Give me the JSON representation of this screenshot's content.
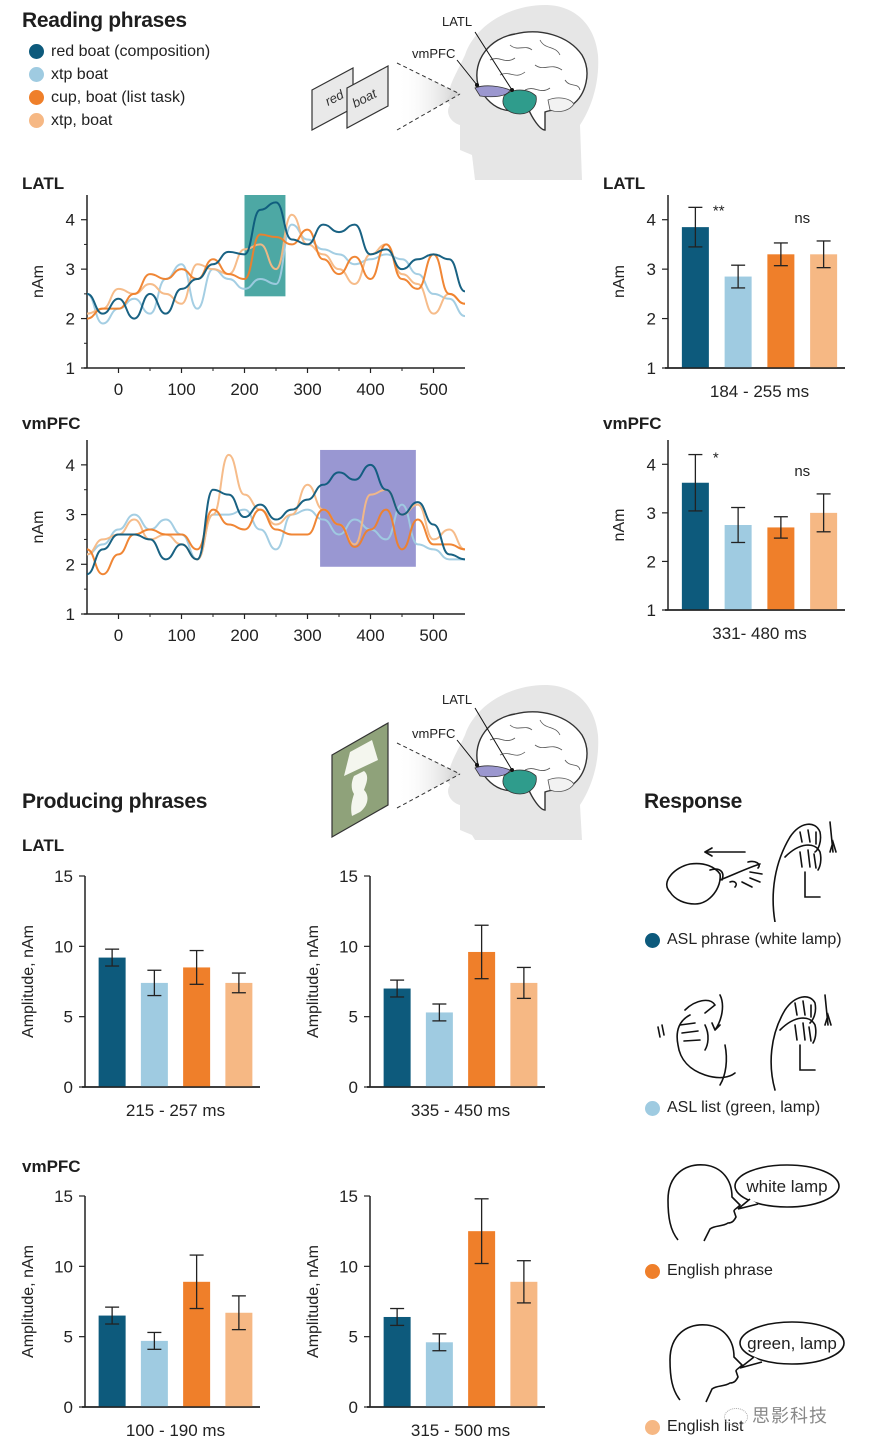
{
  "reading": {
    "title": "Reading phrases",
    "legend": [
      {
        "label": "red boat (composition)",
        "color": "#0d5a7c"
      },
      {
        "label": "xtp boat",
        "color": "#9fcbe1"
      },
      {
        "label": "cup, boat (list task)",
        "color": "#ef7f2a"
      },
      {
        "label": "xtp, boat",
        "color": "#f6b884"
      }
    ],
    "illustration": {
      "card_words": [
        "red",
        "boat"
      ],
      "labels": {
        "latl": "LATL",
        "vmpfc": "vmPFC"
      }
    }
  },
  "producing": {
    "title": "Producing phrases",
    "illustration": {
      "picture": "lamp",
      "labels": {
        "latl": "LATL",
        "vmpfc": "vmPFC"
      }
    }
  },
  "response": {
    "title": "Response",
    "items": [
      {
        "label": "ASL phrase (white lamp)",
        "color": "#0d5a7c",
        "kind": "asl"
      },
      {
        "label": "ASL list (green, lamp)",
        "color": "#9fcbe1",
        "kind": "asl"
      },
      {
        "label": "English phrase",
        "color": "#ef7f2a",
        "kind": "speech",
        "bubble": "white lamp"
      },
      {
        "label": "English list",
        "color": "#f6b884",
        "kind": "speech",
        "bubble": "green, lamp"
      }
    ]
  },
  "watermark": "思影科技",
  "chart_data": [
    {
      "id": "reading-latl-timecourse",
      "type": "line",
      "title": "LATL",
      "xlabel": "",
      "ylabel": "nAm",
      "xlim": [
        -50,
        550
      ],
      "ylim": [
        1,
        4.5
      ],
      "xticks": [
        0,
        100,
        200,
        300,
        400,
        500
      ],
      "yticks": [
        1,
        2,
        3,
        4
      ],
      "highlight": {
        "x0": 200,
        "x1": 265,
        "y0": 2.45,
        "y1": 4.5,
        "color": "#3a9e9a"
      },
      "x": [
        -50,
        -25,
        0,
        25,
        50,
        75,
        100,
        125,
        150,
        175,
        200,
        225,
        250,
        275,
        300,
        325,
        350,
        375,
        400,
        425,
        450,
        475,
        500,
        525,
        550
      ],
      "series": [
        {
          "name": "red boat (composition)",
          "color": "#0d5a7c",
          "values": [
            2.5,
            2.1,
            2.4,
            2.0,
            2.5,
            2.1,
            2.6,
            2.8,
            3.1,
            3.35,
            3.3,
            4.2,
            4.35,
            3.6,
            3.5,
            3.9,
            3.75,
            3.9,
            3.3,
            3.4,
            3.0,
            3.2,
            3.3,
            3.2,
            2.55
          ]
        },
        {
          "name": "xtp boat",
          "color": "#9fcbe1",
          "values": [
            2.5,
            1.9,
            2.2,
            2.4,
            2.1,
            2.8,
            3.1,
            2.2,
            3.0,
            2.8,
            2.6,
            2.8,
            2.7,
            3.9,
            3.6,
            3.4,
            3.3,
            3.1,
            3.2,
            3.3,
            3.2,
            2.9,
            2.5,
            2.4,
            2.05
          ]
        },
        {
          "name": "cup, boat (list task)",
          "color": "#ef7f2a",
          "values": [
            2.0,
            2.2,
            2.2,
            2.5,
            2.9,
            2.8,
            3.0,
            2.8,
            3.2,
            2.9,
            2.8,
            3.7,
            3.65,
            3.5,
            3.8,
            3.2,
            2.9,
            3.25,
            2.8,
            3.5,
            2.8,
            2.6,
            3.3,
            2.5,
            2.3
          ]
        },
        {
          "name": "xtp, boat",
          "color": "#f6b884",
          "values": [
            2.1,
            2.2,
            2.6,
            2.5,
            2.7,
            2.5,
            2.3,
            3.1,
            3.0,
            2.9,
            3.4,
            3.5,
            3.0,
            4.1,
            3.5,
            3.3,
            3.0,
            2.7,
            3.3,
            3.5,
            2.9,
            2.7,
            2.1,
            2.5,
            2.3
          ]
        }
      ]
    },
    {
      "id": "reading-latl-bars",
      "type": "bar",
      "title": "LATL",
      "xlabel": "184 - 255 ms",
      "ylabel": "nAm",
      "ylim": [
        1,
        4.5
      ],
      "yticks": [
        1,
        2,
        3,
        4
      ],
      "categories": [
        "red boat (composition)",
        "xtp boat",
        "cup, boat (list task)",
        "xtp, boat"
      ],
      "colors": [
        "#0d5a7c",
        "#9fcbe1",
        "#ef7f2a",
        "#f6b884"
      ],
      "values": [
        3.85,
        2.85,
        3.3,
        3.3
      ],
      "errors": [
        0.4,
        0.23,
        0.23,
        0.27
      ],
      "annotations": [
        {
          "text": "**",
          "category": 0
        },
        {
          "text": "ns",
          "category": 2.5
        }
      ]
    },
    {
      "id": "reading-vmpfc-timecourse",
      "type": "line",
      "title": "vmPFC",
      "xlabel": "",
      "ylabel": "nAm",
      "xlim": [
        -50,
        550
      ],
      "ylim": [
        1,
        4.5
      ],
      "xticks": [
        0,
        100,
        200,
        300,
        400,
        500
      ],
      "yticks": [
        1,
        2,
        3,
        4
      ],
      "highlight": {
        "x0": 320,
        "x1": 472,
        "y0": 1.95,
        "y1": 4.3,
        "color": "#8e8ccd"
      },
      "x": [
        -50,
        -25,
        0,
        25,
        50,
        75,
        100,
        125,
        150,
        175,
        200,
        225,
        250,
        275,
        300,
        325,
        350,
        375,
        400,
        425,
        450,
        475,
        500,
        525,
        550
      ],
      "series": [
        {
          "name": "red boat (composition)",
          "color": "#0d5a7c",
          "values": [
            1.8,
            2.3,
            2.6,
            2.6,
            2.5,
            2.1,
            2.4,
            2.1,
            3.5,
            3.4,
            2.95,
            3.2,
            2.9,
            3.1,
            3.3,
            3.6,
            3.85,
            3.7,
            4.0,
            3.5,
            3.0,
            3.25,
            2.8,
            2.2,
            2.1
          ]
        },
        {
          "name": "xtp boat",
          "color": "#9fcbe1",
          "values": [
            2.2,
            2.4,
            2.7,
            3.0,
            2.7,
            2.9,
            2.6,
            2.1,
            3.0,
            3.0,
            3.1,
            2.7,
            2.3,
            3.0,
            3.1,
            2.9,
            2.6,
            2.9,
            2.7,
            2.5,
            3.2,
            2.4,
            2.3,
            2.1,
            2.1
          ]
        },
        {
          "name": "cup, boat (list task)",
          "color": "#ef7f2a",
          "values": [
            2.3,
            1.8,
            2.2,
            2.6,
            2.7,
            2.6,
            2.6,
            2.3,
            3.1,
            2.8,
            2.7,
            3.1,
            2.7,
            2.6,
            2.6,
            3.1,
            2.8,
            2.35,
            2.7,
            3.1,
            2.3,
            2.9,
            2.4,
            2.4,
            2.3
          ]
        },
        {
          "name": "xtp, boat",
          "color": "#f6b884",
          "values": [
            2.2,
            2.5,
            2.6,
            2.9,
            2.5,
            2.6,
            2.4,
            2.1,
            3.0,
            4.2,
            3.4,
            3.1,
            2.8,
            3.0,
            3.6,
            3.1,
            2.8,
            2.4,
            3.4,
            3.5,
            3.0,
            3.2,
            2.5,
            2.7,
            2.3
          ]
        }
      ]
    },
    {
      "id": "reading-vmpfc-bars",
      "type": "bar",
      "title": "vmPFC",
      "xlabel": "331- 480 ms",
      "ylabel": "nAm",
      "ylim": [
        1,
        4.5
      ],
      "yticks": [
        1,
        2,
        3,
        4
      ],
      "categories": [
        "red boat (composition)",
        "xtp boat",
        "cup, boat (list task)",
        "xtp, boat"
      ],
      "colors": [
        "#0d5a7c",
        "#9fcbe1",
        "#ef7f2a",
        "#f6b884"
      ],
      "values": [
        3.62,
        2.75,
        2.7,
        3.0
      ],
      "errors": [
        0.58,
        0.36,
        0.22,
        0.39
      ],
      "annotations": [
        {
          "text": "*",
          "category": 0
        },
        {
          "text": "ns",
          "category": 2.5
        }
      ]
    },
    {
      "id": "producing-latl-early",
      "type": "bar",
      "title": "LATL",
      "xlabel": "215 - 257  ms",
      "ylabel": "Amplitude, nAm",
      "ylim": [
        0,
        15
      ],
      "yticks": [
        0,
        5,
        10,
        15
      ],
      "categories": [
        "ASL phrase (white lamp)",
        "ASL list (green, lamp)",
        "English phrase",
        "English list"
      ],
      "colors": [
        "#0d5a7c",
        "#9fcbe1",
        "#ef7f2a",
        "#f6b884"
      ],
      "values": [
        9.2,
        7.4,
        8.5,
        7.4
      ],
      "errors": [
        0.6,
        0.9,
        1.2,
        0.7
      ]
    },
    {
      "id": "producing-latl-late",
      "type": "bar",
      "title": "",
      "xlabel": "335 - 450  ms",
      "ylabel": "Amplitude, nAm",
      "ylim": [
        0,
        15
      ],
      "yticks": [
        0,
        5,
        10,
        15
      ],
      "categories": [
        "ASL phrase (white lamp)",
        "ASL list (green, lamp)",
        "English phrase",
        "English list"
      ],
      "colors": [
        "#0d5a7c",
        "#9fcbe1",
        "#ef7f2a",
        "#f6b884"
      ],
      "values": [
        7.0,
        5.3,
        9.6,
        7.4
      ],
      "errors": [
        0.6,
        0.6,
        1.9,
        1.1
      ]
    },
    {
      "id": "producing-vmpfc-early",
      "type": "bar",
      "title": "vmPFC",
      "xlabel": "100 - 190  ms",
      "ylabel": "Amplitude, nAm",
      "ylim": [
        0,
        15
      ],
      "yticks": [
        0,
        5,
        10,
        15
      ],
      "categories": [
        "ASL phrase (white lamp)",
        "ASL list (green, lamp)",
        "English phrase",
        "English list"
      ],
      "colors": [
        "#0d5a7c",
        "#9fcbe1",
        "#ef7f2a",
        "#f6b884"
      ],
      "values": [
        6.5,
        4.7,
        8.9,
        6.7
      ],
      "errors": [
        0.6,
        0.6,
        1.9,
        1.2
      ]
    },
    {
      "id": "producing-vmpfc-late",
      "type": "bar",
      "title": "",
      "xlabel": "315 - 500  ms",
      "ylabel": "Amplitude, nAm",
      "ylim": [
        0,
        15
      ],
      "yticks": [
        0,
        5,
        10,
        15
      ],
      "categories": [
        "ASL phrase (white lamp)",
        "ASL list (green, lamp)",
        "English phrase",
        "English list"
      ],
      "colors": [
        "#0d5a7c",
        "#9fcbe1",
        "#ef7f2a",
        "#f6b884"
      ],
      "values": [
        6.4,
        4.6,
        12.5,
        8.9
      ],
      "errors": [
        0.6,
        0.6,
        2.3,
        1.5
      ]
    }
  ]
}
